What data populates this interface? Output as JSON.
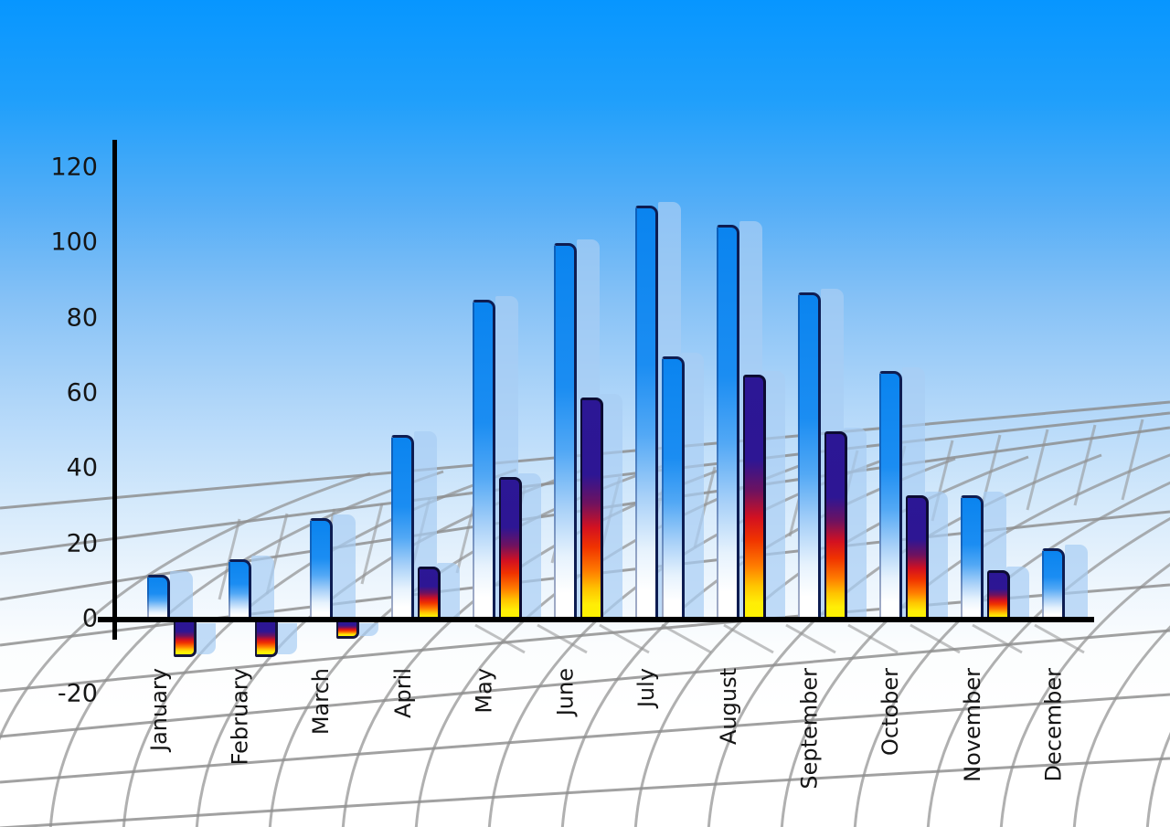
{
  "chart_data": {
    "type": "bar",
    "categories": [
      "January",
      "February",
      "March",
      "April",
      "May",
      "June",
      "July",
      "August",
      "September",
      "October",
      "November",
      "December"
    ],
    "series": [
      {
        "name": "tall-blue-bars",
        "values": [
          12,
          16,
          27,
          49,
          85,
          100,
          110,
          105,
          87,
          66,
          33,
          19
        ]
      },
      {
        "name": "front-gradient-bars",
        "values": [
          -10,
          -10,
          -5,
          14,
          38,
          59,
          70,
          65,
          50,
          33,
          13,
          null
        ]
      }
    ],
    "y_ticks": [
      120,
      100,
      80,
      60,
      40,
      20,
      0,
      -20
    ],
    "ylim": [
      -20,
      120
    ],
    "xlabel": "",
    "ylabel": "",
    "legend_position": "none",
    "grid": "decorative 3D perspective mesh, gray curved lines",
    "notes": "Each bar has a pale translucent drop-shadow copy offset to the right; July front bar uses a blue-to-white gradient instead of navy-red-yellow; December has no front bar; January-March front bars are negative"
  },
  "colors": {
    "sky_top": "#0796ff",
    "sky_bottom": "#ffffff",
    "bar_blue": "#0d87f1",
    "bar_outline_navy": "#0e1d52",
    "rainbow_navy": "#2c1795",
    "rainbow_red": "#e01111",
    "rainbow_yellow": "#fdf400",
    "shadow_blue": "#a8cdf4",
    "grid_gray": "#8a8a8a",
    "axis_black": "#000000",
    "label_color": "#151515"
  }
}
